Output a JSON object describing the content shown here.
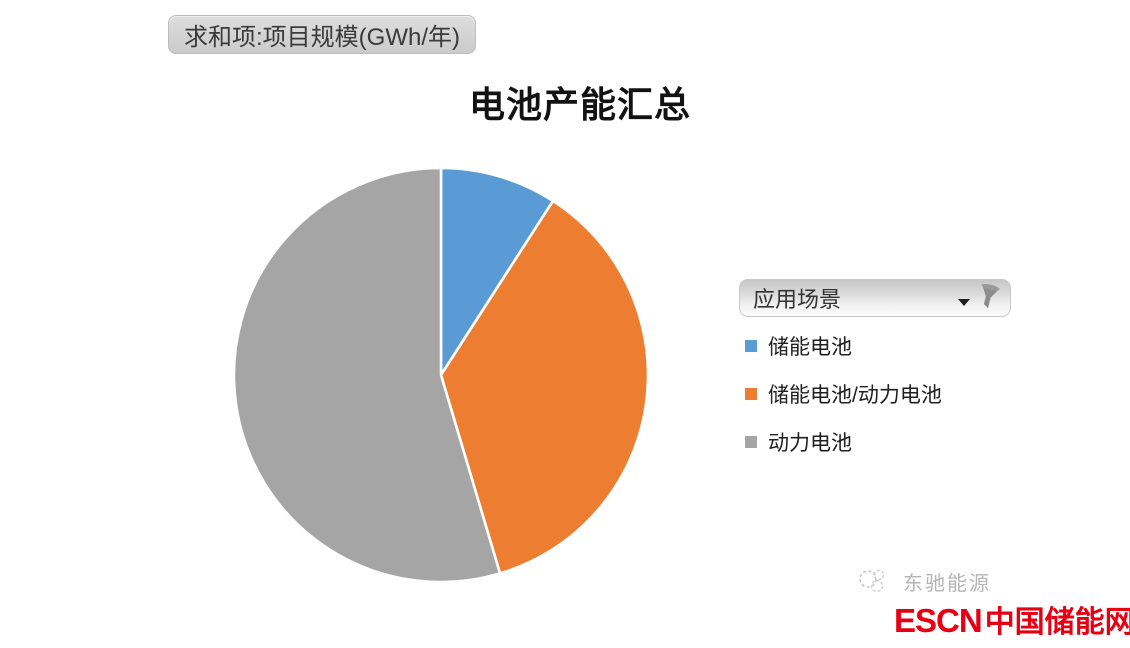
{
  "pivot_field_button": {
    "label": "求和项:项目规模(GWh/年)"
  },
  "chart_title": "电池产能汇总",
  "legend_field_button": {
    "label": "应用场景"
  },
  "chart_data": {
    "type": "pie",
    "title": "电池产能汇总",
    "value_field_label": "求和项:项目规模(GWh/年)",
    "filter_field_label": "应用场景",
    "labels": [
      "储能电池",
      "储能电池/动力电池",
      "动力电池"
    ],
    "values_percent": [
      9.1,
      36.3,
      54.6
    ],
    "colors": [
      "#5B9BD5",
      "#ED7D31",
      "#A5A5A5"
    ],
    "start_angle_deg": 0,
    "direction": "clockwise",
    "slice_border_color": "#ffffff",
    "legend_position": "right",
    "data_labels_shown": false
  },
  "watermark": {
    "company": "东驰能源",
    "company_color": "#b5b5b5",
    "site_name_en": "ESCN",
    "site_name_cn": "中国储能网",
    "site_color": "#e60012"
  }
}
